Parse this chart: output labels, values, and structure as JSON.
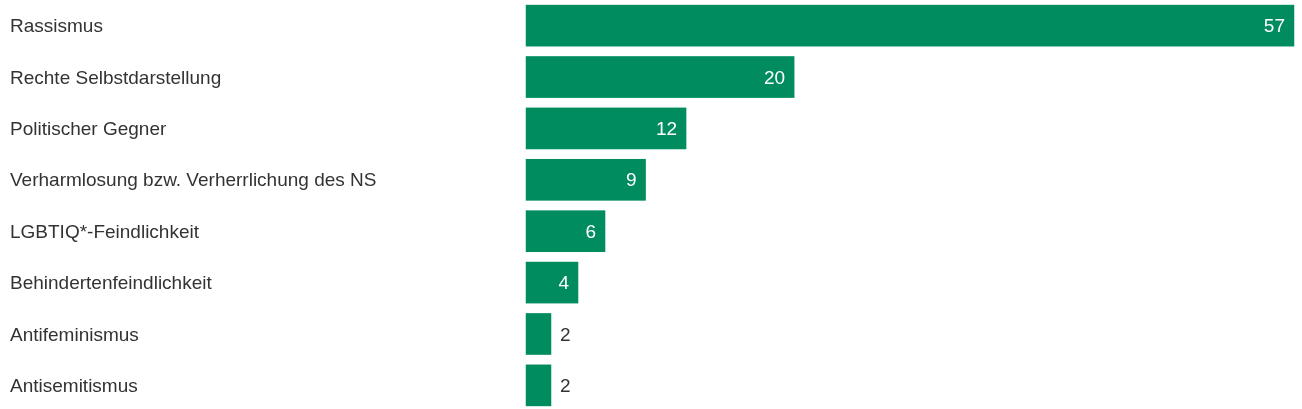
{
  "chart_data": {
    "type": "bar",
    "orientation": "horizontal",
    "categories": [
      "Rassismus",
      "Rechte Selbstdarstellung",
      "Politischer Gegner",
      "Verharmlosung bzw. Verherrlichung des NS",
      "LGBTIQ*-Feindlichkeit",
      "Behindertenfeindlichkeit",
      "Antifeminismus",
      "Antisemitismus"
    ],
    "values": [
      57,
      20,
      12,
      9,
      6,
      4,
      2,
      2
    ],
    "color": "#008c5f",
    "data_labels": true
  }
}
